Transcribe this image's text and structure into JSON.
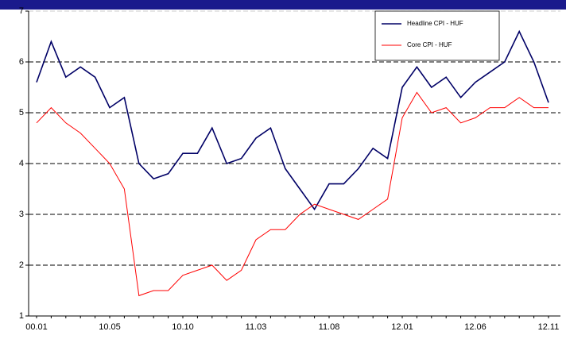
{
  "chart_data": {
    "type": "line",
    "categories": [
      "00.01",
      null,
      null,
      null,
      null,
      "10.05",
      null,
      null,
      null,
      null,
      "10.10",
      null,
      null,
      null,
      null,
      "11.03",
      null,
      null,
      null,
      null,
      "11.08",
      null,
      null,
      null,
      null,
      "12.01",
      null,
      null,
      null,
      null,
      "12.06",
      null,
      null,
      null,
      null,
      "12.11"
    ],
    "series": [
      {
        "name": "Headline CPI - HUF",
        "color": "#000066",
        "values": [
          5.6,
          6.4,
          5.7,
          5.9,
          5.7,
          5.1,
          5.3,
          4.0,
          3.7,
          3.8,
          4.2,
          4.2,
          4.7,
          4.0,
          4.1,
          4.5,
          4.7,
          3.9,
          3.5,
          3.1,
          3.6,
          3.6,
          3.9,
          4.3,
          4.1,
          5.5,
          5.9,
          5.5,
          5.7,
          5.3,
          5.6,
          5.8,
          6.0,
          6.6,
          6.0,
          5.2
        ]
      },
      {
        "name": "Core CPI - HUF",
        "color": "#ff0000",
        "values": [
          4.8,
          5.1,
          4.8,
          4.6,
          4.3,
          4.0,
          3.5,
          1.4,
          1.5,
          1.5,
          1.8,
          1.9,
          2.0,
          1.7,
          1.9,
          2.5,
          2.7,
          2.7,
          3.0,
          3.2,
          3.1,
          3.0,
          2.9,
          3.1,
          3.3,
          4.9,
          5.4,
          5.0,
          5.1,
          4.8,
          4.9,
          5.1,
          5.1,
          5.3,
          5.1,
          5.1
        ]
      }
    ],
    "ylim": [
      1,
      7
    ],
    "yticks": [
      1,
      2,
      3,
      4,
      5,
      6,
      7
    ],
    "grid": true,
    "legend": "top-right"
  }
}
